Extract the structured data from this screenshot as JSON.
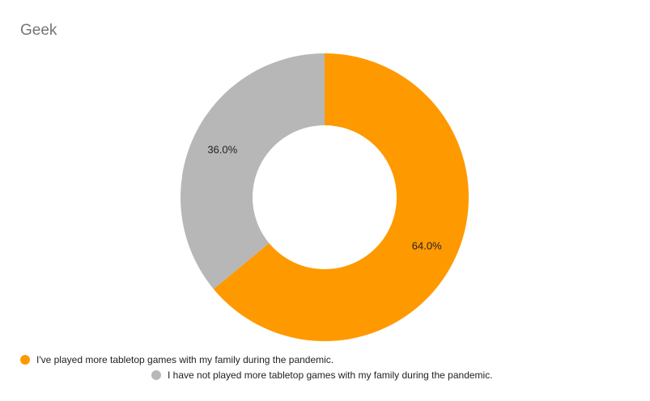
{
  "chart_data": {
    "type": "pie",
    "title": "Geek",
    "donut": true,
    "legend_position": "bottom",
    "slices": [
      {
        "label": "I've played more tabletop games with my family during the pandemic.",
        "value": 64.0,
        "display": "64.0%",
        "color": "#ff9900"
      },
      {
        "label": "I have not played more tabletop games with my family during the pandemic.",
        "value": 36.0,
        "display": "36.0%",
        "color": "#b7b7b7"
      }
    ]
  }
}
